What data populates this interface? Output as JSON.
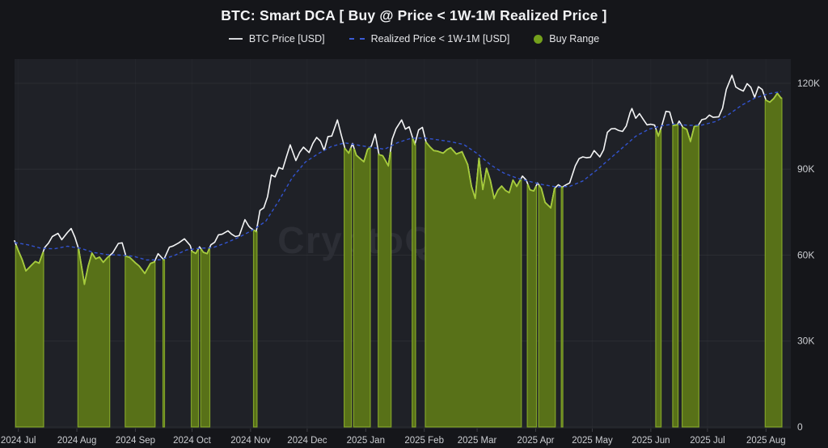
{
  "page": {
    "title": "BTC: Smart DCA [ Buy @ Price < 1W-1M Realized Price ]"
  },
  "watermark": "CryptoQuant",
  "legend": [
    {
      "label": "BTC Price [USD]",
      "swatch": "line",
      "color": "#d6d7da"
    },
    {
      "label": "Realized Price < 1W-1M [USD]",
      "swatch": "dashed-line",
      "color": "#3b5cd8"
    },
    {
      "label": "Buy Range",
      "swatch": "dot",
      "color": "#74a01c"
    }
  ],
  "colors": {
    "background": "#15161a",
    "plot_background": "#1f2127",
    "btc_line": "#f4f5f6",
    "realized_line": "#3253cf",
    "buy_fill": "#5a7418",
    "buy_top": "#a6cb3c",
    "buy_edge": "#8db22c",
    "grid": "rgba(255,255,255,0.055)",
    "axis_text": "#cbcdd1",
    "watermark_text": "#2c2e35"
  },
  "chart_data": {
    "type": "line",
    "title": "BTC: Smart DCA [ Buy @ Price < 1W-1M Realized Price ]",
    "x_domain": [
      "2024-06-29",
      "2025-08-09"
    ],
    "y_unit": "USD (thousands)",
    "ylim": [
      0,
      128.5
    ],
    "grid": "horizontal",
    "legend_position": "top",
    "y_ticks": [
      {
        "v": 0,
        "label": "0"
      },
      {
        "v": 30,
        "label": "30K"
      },
      {
        "v": 60,
        "label": "60K"
      },
      {
        "v": 90,
        "label": "90K"
      },
      {
        "v": 120,
        "label": "120K"
      }
    ],
    "x_ticks": [
      {
        "date": "2024-07-01",
        "label": "2024 Jul"
      },
      {
        "date": "2024-08-01",
        "label": "2024 Aug"
      },
      {
        "date": "2024-09-01",
        "label": "2024 Sep"
      },
      {
        "date": "2024-10-01",
        "label": "2024 Oct"
      },
      {
        "date": "2024-11-01",
        "label": "2024 Nov"
      },
      {
        "date": "2024-12-01",
        "label": "2024 Dec"
      },
      {
        "date": "2025-01-01",
        "label": "2025 Jan"
      },
      {
        "date": "2025-02-01",
        "label": "2025 Feb"
      },
      {
        "date": "2025-03-01",
        "label": "2025 Mar"
      },
      {
        "date": "2025-04-01",
        "label": "2025 Apr"
      },
      {
        "date": "2025-05-01",
        "label": "2025 May"
      },
      {
        "date": "2025-06-01",
        "label": "2025 Jun"
      },
      {
        "date": "2025-07-01",
        "label": "2025 Jul"
      },
      {
        "date": "2025-08-01",
        "label": "2025 Aug"
      }
    ],
    "series": [
      {
        "name": "BTC Price [USD]",
        "style": "solid",
        "color": "#f4f5f6",
        "points": [
          [
            "2024-06-29",
            65.0
          ],
          [
            "2024-07-01",
            61.5
          ],
          [
            "2024-07-03",
            58.5
          ],
          [
            "2024-07-05",
            54.5
          ],
          [
            "2024-07-08",
            56.5
          ],
          [
            "2024-07-10",
            57.8
          ],
          [
            "2024-07-12",
            57.2
          ],
          [
            "2024-07-15",
            62.7
          ],
          [
            "2024-07-17",
            64.2
          ],
          [
            "2024-07-19",
            66.5
          ],
          [
            "2024-07-22",
            67.6
          ],
          [
            "2024-07-24",
            65.4
          ],
          [
            "2024-07-27",
            67.9
          ],
          [
            "2024-07-29",
            69.3
          ],
          [
            "2024-07-31",
            66.2
          ],
          [
            "2024-08-02",
            62.0
          ],
          [
            "2024-08-05",
            49.8
          ],
          [
            "2024-08-07",
            56.2
          ],
          [
            "2024-08-09",
            60.7
          ],
          [
            "2024-08-11",
            58.7
          ],
          [
            "2024-08-13",
            59.3
          ],
          [
            "2024-08-15",
            57.5
          ],
          [
            "2024-08-17",
            59.0
          ],
          [
            "2024-08-20",
            60.8
          ],
          [
            "2024-08-23",
            64.1
          ],
          [
            "2024-08-25",
            64.3
          ],
          [
            "2024-08-27",
            59.6
          ],
          [
            "2024-08-29",
            59.2
          ],
          [
            "2024-09-01",
            57.3
          ],
          [
            "2024-09-03",
            56.2
          ],
          [
            "2024-09-06",
            53.6
          ],
          [
            "2024-09-09",
            57.1
          ],
          [
            "2024-09-11",
            57.6
          ],
          [
            "2024-09-13",
            60.5
          ],
          [
            "2024-09-16",
            58.4
          ],
          [
            "2024-09-19",
            62.8
          ],
          [
            "2024-09-21",
            63.2
          ],
          [
            "2024-09-24",
            64.3
          ],
          [
            "2024-09-27",
            65.7
          ],
          [
            "2024-09-30",
            63.4
          ],
          [
            "2024-10-01",
            61.3
          ],
          [
            "2024-10-03",
            60.6
          ],
          [
            "2024-10-05",
            62.9
          ],
          [
            "2024-10-07",
            61.0
          ],
          [
            "2024-10-09",
            60.5
          ],
          [
            "2024-10-11",
            63.6
          ],
          [
            "2024-10-13",
            64.5
          ],
          [
            "2024-10-15",
            67.1
          ],
          [
            "2024-10-17",
            67.3
          ],
          [
            "2024-10-20",
            68.5
          ],
          [
            "2024-10-22",
            67.3
          ],
          [
            "2024-10-24",
            66.5
          ],
          [
            "2024-10-26",
            66.8
          ],
          [
            "2024-10-29",
            72.4
          ],
          [
            "2024-10-31",
            70.2
          ],
          [
            "2024-11-01",
            69.5
          ],
          [
            "2024-11-04",
            68.2
          ],
          [
            "2024-11-06",
            75.6
          ],
          [
            "2024-11-08",
            76.5
          ],
          [
            "2024-11-10",
            80.4
          ],
          [
            "2024-11-12",
            88.0
          ],
          [
            "2024-11-14",
            87.3
          ],
          [
            "2024-11-16",
            90.6
          ],
          [
            "2024-11-18",
            90.0
          ],
          [
            "2024-11-20",
            94.3
          ],
          [
            "2024-11-22",
            98.5
          ],
          [
            "2024-11-25",
            93.0
          ],
          [
            "2024-11-27",
            95.9
          ],
          [
            "2024-11-29",
            97.7
          ],
          [
            "2024-12-02",
            95.8
          ],
          [
            "2024-12-04",
            99.0
          ],
          [
            "2024-12-06",
            101.1
          ],
          [
            "2024-12-08",
            99.8
          ],
          [
            "2024-12-10",
            96.6
          ],
          [
            "2024-12-12",
            101.4
          ],
          [
            "2024-12-14",
            101.6
          ],
          [
            "2024-12-17",
            107.2
          ],
          [
            "2024-12-19",
            102.0
          ],
          [
            "2024-12-21",
            97.2
          ],
          [
            "2024-12-23",
            95.6
          ],
          [
            "2024-12-25",
            99.0
          ],
          [
            "2024-12-27",
            94.9
          ],
          [
            "2024-12-29",
            93.7
          ],
          [
            "2024-12-31",
            92.6
          ],
          [
            "2025-01-02",
            96.9
          ],
          [
            "2025-01-04",
            98.1
          ],
          [
            "2025-01-06",
            102.2
          ],
          [
            "2025-01-08",
            95.1
          ],
          [
            "2025-01-10",
            94.7
          ],
          [
            "2025-01-13",
            91.2
          ],
          [
            "2025-01-15",
            100.5
          ],
          [
            "2025-01-17",
            104.1
          ],
          [
            "2025-01-20",
            107.2
          ],
          [
            "2025-01-22",
            104.0
          ],
          [
            "2025-01-24",
            104.8
          ],
          [
            "2025-01-27",
            98.6
          ],
          [
            "2025-01-29",
            103.7
          ],
          [
            "2025-01-31",
            104.6
          ],
          [
            "2025-02-02",
            99.4
          ],
          [
            "2025-02-04",
            97.8
          ],
          [
            "2025-02-06",
            96.5
          ],
          [
            "2025-02-08",
            96.3
          ],
          [
            "2025-02-11",
            95.6
          ],
          [
            "2025-02-13",
            96.8
          ],
          [
            "2025-02-15",
            97.5
          ],
          [
            "2025-02-18",
            95.3
          ],
          [
            "2025-02-21",
            96.1
          ],
          [
            "2025-02-24",
            91.6
          ],
          [
            "2025-02-26",
            84.0
          ],
          [
            "2025-02-28",
            79.8
          ],
          [
            "2025-03-02",
            93.8
          ],
          [
            "2025-03-04",
            82.9
          ],
          [
            "2025-03-06",
            90.3
          ],
          [
            "2025-03-08",
            86.1
          ],
          [
            "2025-03-10",
            79.8
          ],
          [
            "2025-03-12",
            82.7
          ],
          [
            "2025-03-14",
            84.1
          ],
          [
            "2025-03-16",
            82.6
          ],
          [
            "2025-03-18",
            81.8
          ],
          [
            "2025-03-20",
            86.2
          ],
          [
            "2025-03-22",
            84.0
          ],
          [
            "2025-03-25",
            87.6
          ],
          [
            "2025-03-27",
            86.2
          ],
          [
            "2025-03-29",
            82.8
          ],
          [
            "2025-03-31",
            82.4
          ],
          [
            "2025-04-02",
            85.2
          ],
          [
            "2025-04-04",
            83.3
          ],
          [
            "2025-04-06",
            78.4
          ],
          [
            "2025-04-09",
            76.5
          ],
          [
            "2025-04-11",
            83.3
          ],
          [
            "2025-04-13",
            84.6
          ],
          [
            "2025-04-15",
            83.7
          ],
          [
            "2025-04-17",
            84.5
          ],
          [
            "2025-04-19",
            85.2
          ],
          [
            "2025-04-22",
            91.2
          ],
          [
            "2025-04-24",
            93.7
          ],
          [
            "2025-04-26",
            94.3
          ],
          [
            "2025-04-28",
            94.0
          ],
          [
            "2025-04-30",
            94.2
          ],
          [
            "2025-05-02",
            96.5
          ],
          [
            "2025-05-05",
            94.3
          ],
          [
            "2025-05-07",
            96.8
          ],
          [
            "2025-05-09",
            102.9
          ],
          [
            "2025-05-11",
            104.1
          ],
          [
            "2025-05-13",
            104.2
          ],
          [
            "2025-05-15",
            103.5
          ],
          [
            "2025-05-17",
            103.2
          ],
          [
            "2025-05-19",
            105.1
          ],
          [
            "2025-05-21",
            109.7
          ],
          [
            "2025-05-22",
            111.2
          ],
          [
            "2025-05-24",
            107.8
          ],
          [
            "2025-05-26",
            109.4
          ],
          [
            "2025-05-28",
            107.4
          ],
          [
            "2025-05-30",
            105.5
          ],
          [
            "2025-06-01",
            105.7
          ],
          [
            "2025-06-03",
            105.4
          ],
          [
            "2025-06-05",
            101.6
          ],
          [
            "2025-06-07",
            105.6
          ],
          [
            "2025-06-09",
            110.2
          ],
          [
            "2025-06-11",
            110.0
          ],
          [
            "2025-06-13",
            105.3
          ],
          [
            "2025-06-15",
            105.5
          ],
          [
            "2025-06-16",
            106.8
          ],
          [
            "2025-06-18",
            104.6
          ],
          [
            "2025-06-20",
            103.9
          ],
          [
            "2025-06-22",
            99.7
          ],
          [
            "2025-06-24",
            104.9
          ],
          [
            "2025-06-26",
            105.2
          ],
          [
            "2025-06-28",
            107.3
          ],
          [
            "2025-06-30",
            107.6
          ],
          [
            "2025-07-02",
            108.9
          ],
          [
            "2025-07-04",
            108.1
          ],
          [
            "2025-07-07",
            108.3
          ],
          [
            "2025-07-09",
            111.3
          ],
          [
            "2025-07-11",
            117.9
          ],
          [
            "2025-07-14",
            122.8
          ],
          [
            "2025-07-16",
            118.7
          ],
          [
            "2025-07-18",
            117.9
          ],
          [
            "2025-07-20",
            117.3
          ],
          [
            "2025-07-22",
            119.9
          ],
          [
            "2025-07-24",
            118.6
          ],
          [
            "2025-07-26",
            115.1
          ],
          [
            "2025-07-28",
            118.8
          ],
          [
            "2025-07-30",
            117.8
          ],
          [
            "2025-08-01",
            114.1
          ],
          [
            "2025-08-03",
            113.4
          ],
          [
            "2025-08-05",
            114.6
          ],
          [
            "2025-08-07",
            116.5
          ],
          [
            "2025-08-09",
            114.8
          ]
        ]
      },
      {
        "name": "Realized Price < 1W-1M [USD]",
        "style": "dashed",
        "color": "#3253cf",
        "points": [
          [
            "2024-06-29",
            64.4
          ],
          [
            "2024-07-06",
            63.6
          ],
          [
            "2024-07-13",
            62.4
          ],
          [
            "2024-07-20",
            62.2
          ],
          [
            "2024-07-27",
            63.1
          ],
          [
            "2024-08-03",
            62.4
          ],
          [
            "2024-08-10",
            60.9
          ],
          [
            "2024-08-17",
            60.2
          ],
          [
            "2024-08-24",
            60.0
          ],
          [
            "2024-08-31",
            59.6
          ],
          [
            "2024-09-07",
            58.3
          ],
          [
            "2024-09-14",
            58.4
          ],
          [
            "2024-09-21",
            59.7
          ],
          [
            "2024-09-28",
            61.8
          ],
          [
            "2024-10-05",
            62.4
          ],
          [
            "2024-10-12",
            62.6
          ],
          [
            "2024-10-19",
            64.3
          ],
          [
            "2024-10-26",
            66.3
          ],
          [
            "2024-11-02",
            68.7
          ],
          [
            "2024-11-09",
            71.8
          ],
          [
            "2024-11-16",
            79.0
          ],
          [
            "2024-11-23",
            87.0
          ],
          [
            "2024-11-30",
            92.5
          ],
          [
            "2024-12-07",
            95.5
          ],
          [
            "2024-12-14",
            98.0
          ],
          [
            "2024-12-21",
            99.2
          ],
          [
            "2024-12-28",
            98.4
          ],
          [
            "2025-01-04",
            97.6
          ],
          [
            "2025-01-11",
            97.0
          ],
          [
            "2025-01-18",
            99.3
          ],
          [
            "2025-01-25",
            100.8
          ],
          [
            "2025-02-01",
            100.9
          ],
          [
            "2025-02-08",
            100.3
          ],
          [
            "2025-02-15",
            99.6
          ],
          [
            "2025-02-22",
            98.6
          ],
          [
            "2025-03-01",
            95.5
          ],
          [
            "2025-03-08",
            91.6
          ],
          [
            "2025-03-15",
            88.7
          ],
          [
            "2025-03-22",
            86.9
          ],
          [
            "2025-03-29",
            85.7
          ],
          [
            "2025-04-05",
            84.6
          ],
          [
            "2025-04-12",
            83.8
          ],
          [
            "2025-04-19",
            84.0
          ],
          [
            "2025-04-26",
            85.9
          ],
          [
            "2025-05-03",
            89.5
          ],
          [
            "2025-05-10",
            93.5
          ],
          [
            "2025-05-17",
            97.5
          ],
          [
            "2025-05-24",
            101.5
          ],
          [
            "2025-05-31",
            104.0
          ],
          [
            "2025-06-07",
            105.2
          ],
          [
            "2025-06-14",
            105.8
          ],
          [
            "2025-06-21",
            105.3
          ],
          [
            "2025-06-28",
            105.4
          ],
          [
            "2025-07-05",
            106.6
          ],
          [
            "2025-07-12",
            109.0
          ],
          [
            "2025-07-19",
            112.3
          ],
          [
            "2025-07-26",
            114.8
          ],
          [
            "2025-08-02",
            116.3
          ],
          [
            "2025-08-09",
            117.1
          ]
        ]
      }
    ],
    "buy_range": {
      "name": "Buy Range",
      "rule": "area filled from 0 to BTC Price wherever BTC Price < Realized Price 1W-1M",
      "fill": "#5a7418",
      "top_edge": "#a6cb3c",
      "side_edge": "#8db22c"
    }
  }
}
